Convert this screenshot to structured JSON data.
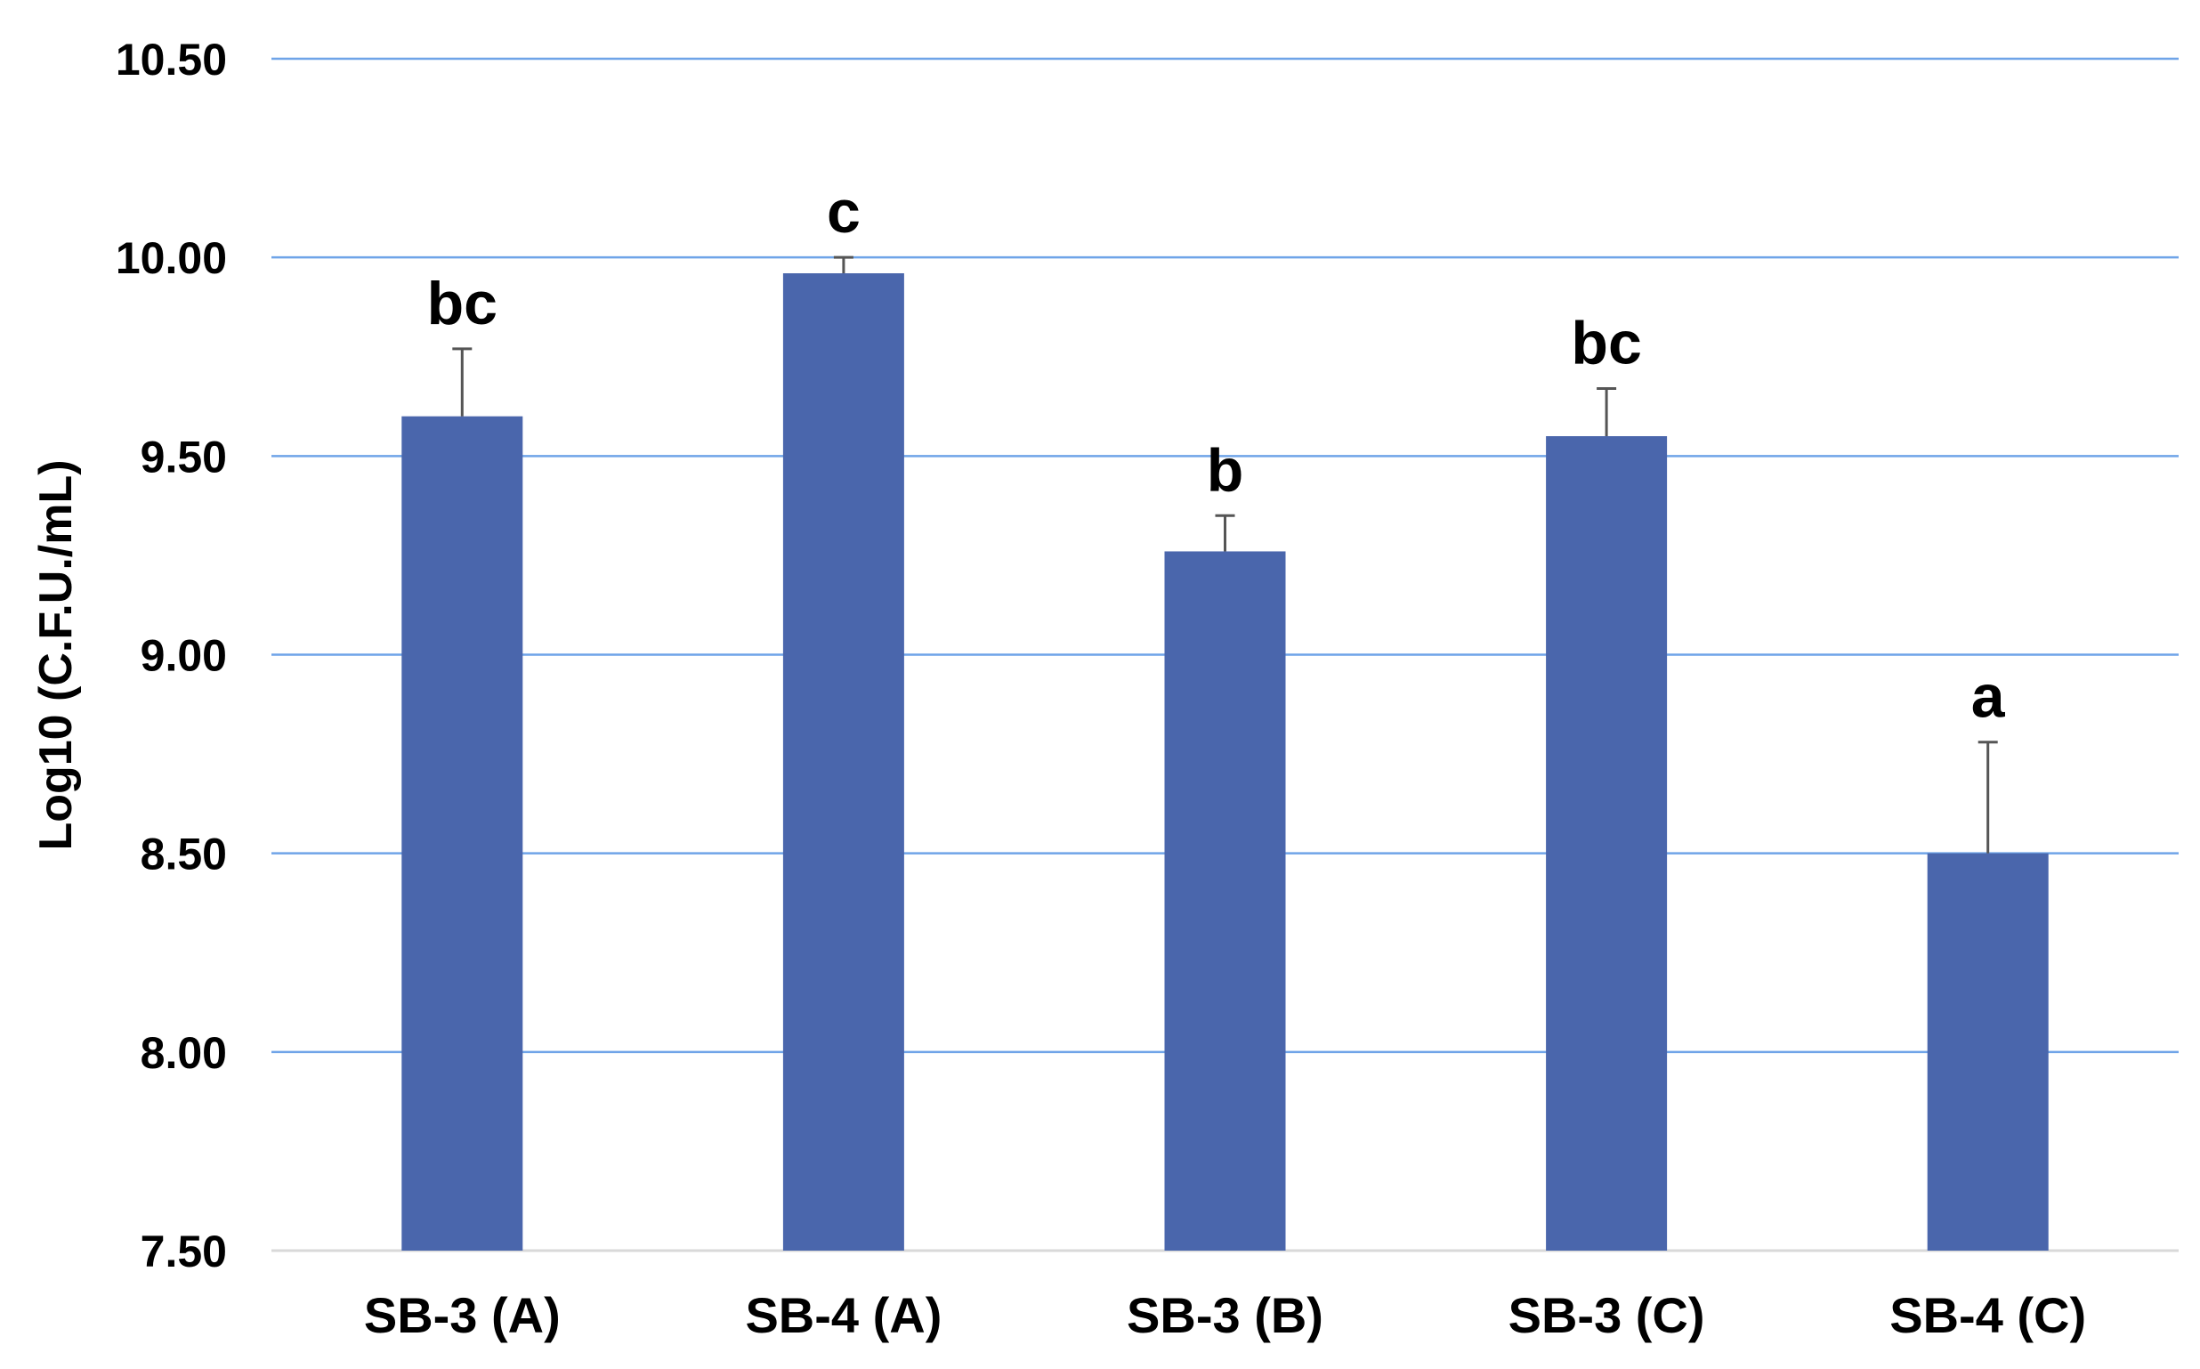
{
  "chart_data": {
    "type": "bar",
    "title": "",
    "xlabel": "",
    "ylabel": "Log10 (C.F.U./mL)",
    "ylim": [
      7.5,
      10.5
    ],
    "yticks": [
      7.5,
      8.0,
      8.5,
      9.0,
      9.5,
      10.0,
      10.5
    ],
    "ytick_labels": [
      "7.50",
      "8.00",
      "8.50",
      "9.00",
      "9.50",
      "10.00",
      "10.50"
    ],
    "grid": true,
    "legend": "none",
    "categories": [
      "SB-3 (A)",
      "SB-4 (A)",
      "SB-3 (B)",
      "SB-3 (C)",
      "SB-4 (C)"
    ],
    "series": [
      {
        "values": [
          9.6,
          9.96,
          9.26,
          9.55,
          8.5
        ],
        "error": [
          0.17,
          0.04,
          0.09,
          0.12,
          0.28
        ],
        "significance": [
          "bc",
          "c",
          "b",
          "bc",
          "a"
        ]
      }
    ],
    "colors": {
      "bar": "#4a66ac",
      "grid": "#6fa4e8",
      "error_bar": "#555555",
      "baseline": "#d9d9d9"
    }
  }
}
